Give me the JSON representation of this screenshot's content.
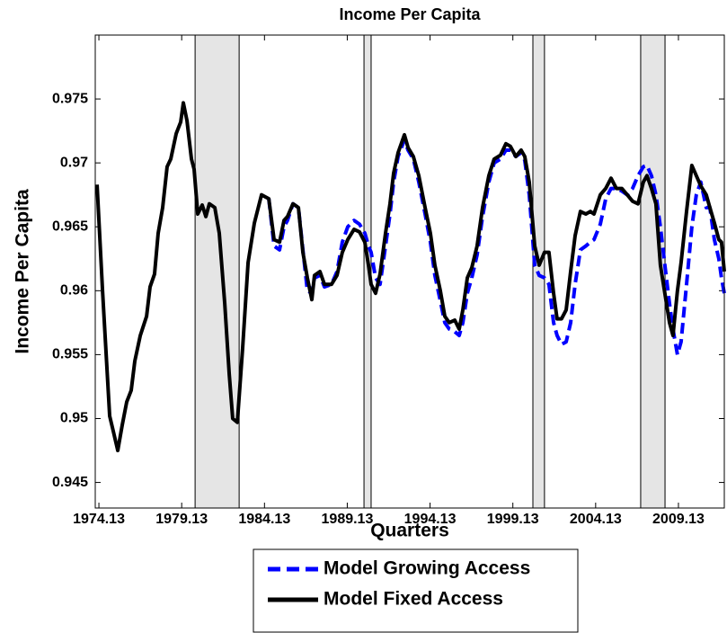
{
  "chart_data": {
    "type": "line",
    "title": "Income Per Capita",
    "xlabel": "Quarters",
    "ylabel": "Income Per Capita",
    "xlim": [
      1973.91,
      2011.9
    ],
    "ylim": [
      0.943,
      0.98
    ],
    "xticks": [
      1974.13,
      1979.13,
      1984.13,
      1989.13,
      1994.13,
      1999.13,
      2004.13,
      2009.13
    ],
    "yticks": [
      0.945,
      0.95,
      0.955,
      0.96,
      0.965,
      0.97,
      0.975
    ],
    "grid": false,
    "legend": "bottom",
    "shaded_periods": [
      [
        1979.94,
        1982.6
      ],
      [
        1990.14,
        1990.57
      ],
      [
        2000.34,
        2001.04
      ],
      [
        2006.85,
        2008.32
      ]
    ],
    "shade_color": "#e5e5e5",
    "x": [
      1974.02,
      1974.35,
      1974.78,
      1975.0,
      1975.27,
      1975.54,
      1975.81,
      1976.08,
      1976.3,
      1976.63,
      1977.01,
      1977.22,
      1977.49,
      1977.71,
      1977.98,
      1978.25,
      1978.47,
      1978.8,
      1979.07,
      1979.23,
      1979.45,
      1979.72,
      1979.88,
      1980.1,
      1980.37,
      1980.59,
      1980.8,
      1981.13,
      1981.4,
      1981.73,
      1982.0,
      1982.21,
      1982.49,
      1982.81,
      1983.14,
      1983.52,
      1983.95,
      1984.39,
      1984.71,
      1985.04,
      1985.31,
      1985.52,
      1985.85,
      1986.18,
      1986.45,
      1986.72,
      1986.99,
      1987.15,
      1987.48,
      1987.75,
      1988.18,
      1988.51,
      1988.83,
      1989.16,
      1989.54,
      1989.87,
      1990.19,
      1990.41,
      1990.57,
      1990.84,
      1991.11,
      1991.44,
      1991.71,
      1991.93,
      1992.2,
      1992.58,
      1992.8,
      1993.12,
      1993.45,
      1993.83,
      1994.15,
      1994.42,
      1994.75,
      1995.02,
      1995.29,
      1995.62,
      1995.89,
      1996.11,
      1996.38,
      1996.65,
      1996.97,
      1997.3,
      1997.68,
      1998.0,
      1998.38,
      1998.71,
      1998.98,
      1999.31,
      1999.63,
      1999.85,
      2000.12,
      2000.45,
      2000.72,
      2001.04,
      2001.31,
      2001.59,
      2001.8,
      2002.07,
      2002.35,
      2002.62,
      2002.89,
      2003.21,
      2003.54,
      2003.81,
      2004.03,
      2004.41,
      2004.74,
      2005.06,
      2005.38,
      2005.71,
      2006.04,
      2006.36,
      2006.69,
      2007.01,
      2007.23,
      2007.5,
      2007.77,
      2008.04,
      2008.31,
      2008.59,
      2008.8,
      2009.07,
      2009.29,
      2009.62,
      2009.94,
      2010.21,
      2010.48,
      2010.81,
      2011.03,
      2011.3,
      2011.57,
      2011.73,
      2011.9
    ],
    "series": [
      {
        "name": "Model Growing Access",
        "color": "#0000ff",
        "dashed": true,
        "values": [
          null,
          null,
          null,
          null,
          null,
          null,
          null,
          null,
          null,
          null,
          null,
          null,
          null,
          null,
          null,
          null,
          null,
          null,
          null,
          null,
          null,
          null,
          null,
          null,
          null,
          null,
          null,
          null,
          null,
          null,
          null,
          null,
          null,
          null,
          null,
          null,
          null,
          0.9672,
          0.9635,
          0.9632,
          0.965,
          0.9655,
          0.9668,
          0.9665,
          0.9632,
          0.96,
          0.9598,
          0.961,
          0.9612,
          0.9603,
          0.9605,
          0.9615,
          0.9638,
          0.965,
          0.9655,
          0.9652,
          0.9645,
          0.9635,
          0.963,
          0.961,
          0.9605,
          0.9635,
          0.966,
          0.9685,
          0.9705,
          0.9718,
          0.971,
          0.9703,
          0.9685,
          0.966,
          0.9638,
          0.9612,
          0.9592,
          0.9575,
          0.957,
          0.9568,
          0.9565,
          0.9575,
          0.9598,
          0.961,
          0.9628,
          0.9658,
          0.9685,
          0.97,
          0.9703,
          0.971,
          0.971,
          0.9705,
          0.9708,
          0.9702,
          0.9675,
          0.962,
          0.9612,
          0.961,
          0.9605,
          0.9575,
          0.9565,
          0.9558,
          0.956,
          0.9575,
          0.9605,
          0.9632,
          0.9635,
          0.9638,
          0.964,
          0.9652,
          0.9672,
          0.968,
          0.968,
          0.9678,
          0.9675,
          0.968,
          0.969,
          0.9697,
          0.9698,
          0.969,
          0.9675,
          0.965,
          0.962,
          0.959,
          0.957,
          0.955,
          0.956,
          0.9605,
          0.965,
          0.9675,
          0.9685,
          0.9665,
          0.9665,
          0.964,
          0.9625,
          0.961,
          0.9598
        ]
      },
      {
        "name": "Model Fixed Access",
        "color": "#000000",
        "dashed": false,
        "values": [
          0.9683,
          0.96,
          0.9502,
          0.949,
          0.9475,
          0.9495,
          0.9513,
          0.9522,
          0.9545,
          0.9565,
          0.958,
          0.9603,
          0.9613,
          0.9645,
          0.9665,
          0.9697,
          0.9703,
          0.9723,
          0.9732,
          0.9747,
          0.9733,
          0.9703,
          0.9695,
          0.966,
          0.9667,
          0.9658,
          0.9668,
          0.9665,
          0.9645,
          0.959,
          0.9535,
          0.95,
          0.9497,
          0.9555,
          0.9622,
          0.9653,
          0.9675,
          0.9672,
          0.964,
          0.9638,
          0.9655,
          0.9658,
          0.9668,
          0.9665,
          0.963,
          0.961,
          0.9593,
          0.9612,
          0.9615,
          0.9605,
          0.9605,
          0.9612,
          0.963,
          0.964,
          0.9648,
          0.9646,
          0.9638,
          0.962,
          0.9605,
          0.9598,
          0.9613,
          0.9645,
          0.9668,
          0.9692,
          0.9708,
          0.9722,
          0.9712,
          0.9705,
          0.969,
          0.9665,
          0.9645,
          0.962,
          0.96,
          0.958,
          0.9575,
          0.9577,
          0.957,
          0.9585,
          0.961,
          0.9618,
          0.9635,
          0.9665,
          0.969,
          0.9703,
          0.9706,
          0.9715,
          0.9713,
          0.9705,
          0.971,
          0.9705,
          0.9685,
          0.9635,
          0.962,
          0.963,
          0.963,
          0.9598,
          0.9578,
          0.9578,
          0.9585,
          0.9615,
          0.9643,
          0.9662,
          0.966,
          0.9662,
          0.966,
          0.9675,
          0.968,
          0.9688,
          0.968,
          0.968,
          0.9675,
          0.967,
          0.9668,
          0.9685,
          0.969,
          0.968,
          0.9668,
          0.962,
          0.9598,
          0.9575,
          0.9565,
          0.96,
          0.9622,
          0.9662,
          0.9698,
          0.969,
          0.9682,
          0.9675,
          0.9665,
          0.9653,
          0.964,
          0.9638,
          0.9615
        ]
      }
    ]
  }
}
